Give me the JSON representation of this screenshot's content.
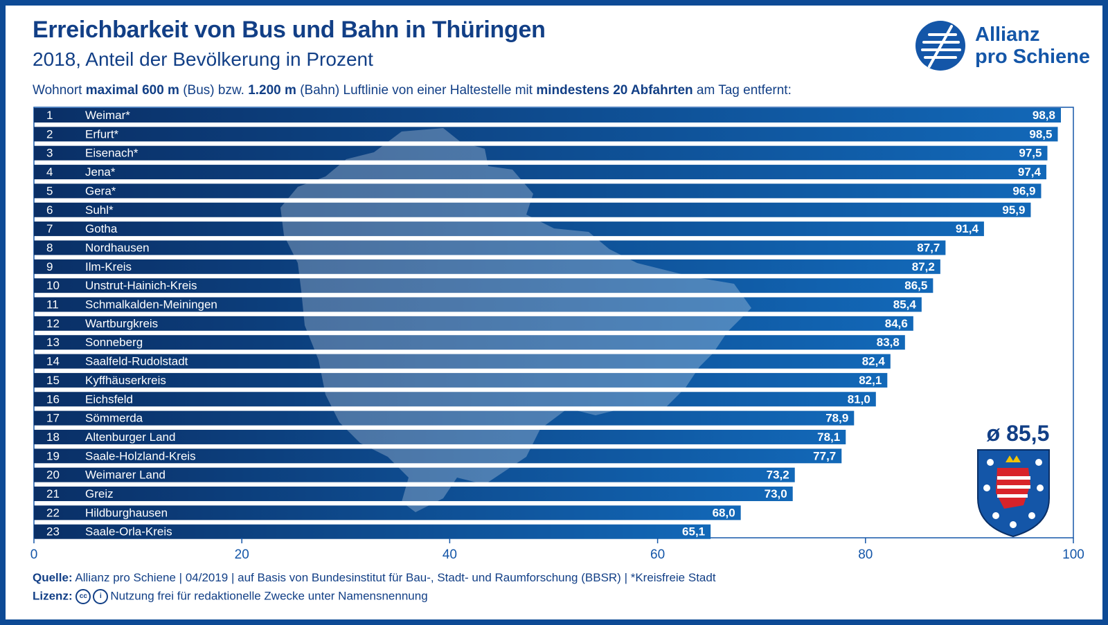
{
  "title": "Erreichbarkeit von Bus und Bahn in Thüringen",
  "subtitle": "2018, Anteil der Bevölkerung in Prozent",
  "description": {
    "p1": "Wohnort ",
    "b1": "maximal 600 m",
    "p2": " (Bus) bzw. ",
    "b2": "1.200 m",
    "p3": " (Bahn) Luftlinie von einer Haltestelle mit ",
    "b3": "mindestens 20 Abfahrten",
    "p4": " am Tag entfernt:"
  },
  "logo": {
    "line1": "Allianz",
    "line2": "pro Schiene"
  },
  "average_label": "ø 85,5",
  "footer": {
    "source_label": "Quelle:",
    "source_text": "Allianz pro Schiene | 04/2019 | auf Basis von Bundesinstitut für Bau-, Stadt- und Raumforschung (BBSR) | *Kreisfreie Stadt",
    "license_label": "Lizenz:",
    "cc_icon": "cc",
    "by_icon": "i",
    "license_text": "Nutzung frei für redaktionelle Zwecke unter Namensnennung"
  },
  "colors": {
    "bar_start": "#0a2f66",
    "bar_end": "#1268b8",
    "text_dark": "#123f86",
    "frame": "#0d4a95"
  },
  "chart_data": {
    "type": "bar",
    "orientation": "horizontal",
    "xlim": [
      0,
      100
    ],
    "xticks": [
      0,
      20,
      40,
      60,
      80,
      100
    ],
    "rows": [
      {
        "rank": "1",
        "name": "Weimar*",
        "value": 98.8,
        "label": "98,8"
      },
      {
        "rank": "2",
        "name": "Erfurt*",
        "value": 98.5,
        "label": "98,5"
      },
      {
        "rank": "3",
        "name": "Eisenach*",
        "value": 97.5,
        "label": "97,5"
      },
      {
        "rank": "4",
        "name": "Jena*",
        "value": 97.4,
        "label": "97,4"
      },
      {
        "rank": "5",
        "name": "Gera*",
        "value": 96.9,
        "label": "96,9"
      },
      {
        "rank": "6",
        "name": "Suhl*",
        "value": 95.9,
        "label": "95,9"
      },
      {
        "rank": "7",
        "name": "Gotha",
        "value": 91.4,
        "label": "91,4"
      },
      {
        "rank": "8",
        "name": "Nordhausen",
        "value": 87.7,
        "label": "87,7"
      },
      {
        "rank": "9",
        "name": "Ilm-Kreis",
        "value": 87.2,
        "label": "87,2"
      },
      {
        "rank": "10",
        "name": "Unstrut-Hainich-Kreis",
        "value": 86.5,
        "label": "86,5"
      },
      {
        "rank": "11",
        "name": "Schmalkalden-Meiningen",
        "value": 85.4,
        "label": "85,4"
      },
      {
        "rank": "12",
        "name": "Wartburgkreis",
        "value": 84.6,
        "label": "84,6"
      },
      {
        "rank": "13",
        "name": "Sonneberg",
        "value": 83.8,
        "label": "83,8"
      },
      {
        "rank": "14",
        "name": "Saalfeld-Rudolstadt",
        "value": 82.4,
        "label": "82,4"
      },
      {
        "rank": "15",
        "name": "Kyffhäuserkreis",
        "value": 82.1,
        "label": "82,1"
      },
      {
        "rank": "16",
        "name": "Eichsfeld",
        "value": 81.0,
        "label": "81,0"
      },
      {
        "rank": "17",
        "name": "Sömmerda",
        "value": 78.9,
        "label": "78,9"
      },
      {
        "rank": "18",
        "name": "Altenburger Land",
        "value": 78.1,
        "label": "78,1"
      },
      {
        "rank": "19",
        "name": "Saale-Holzland-Kreis",
        "value": 77.7,
        "label": "77,7"
      },
      {
        "rank": "20",
        "name": "Weimarer Land",
        "value": 73.2,
        "label": "73,2"
      },
      {
        "rank": "21",
        "name": "Greiz",
        "value": 73.0,
        "label": "73,0"
      },
      {
        "rank": "22",
        "name": "Hildburghausen",
        "value": 68.0,
        "label": "68,0"
      },
      {
        "rank": "23",
        "name": "Saale-Orla-Kreis",
        "value": 65.1,
        "label": "65,1"
      }
    ]
  }
}
